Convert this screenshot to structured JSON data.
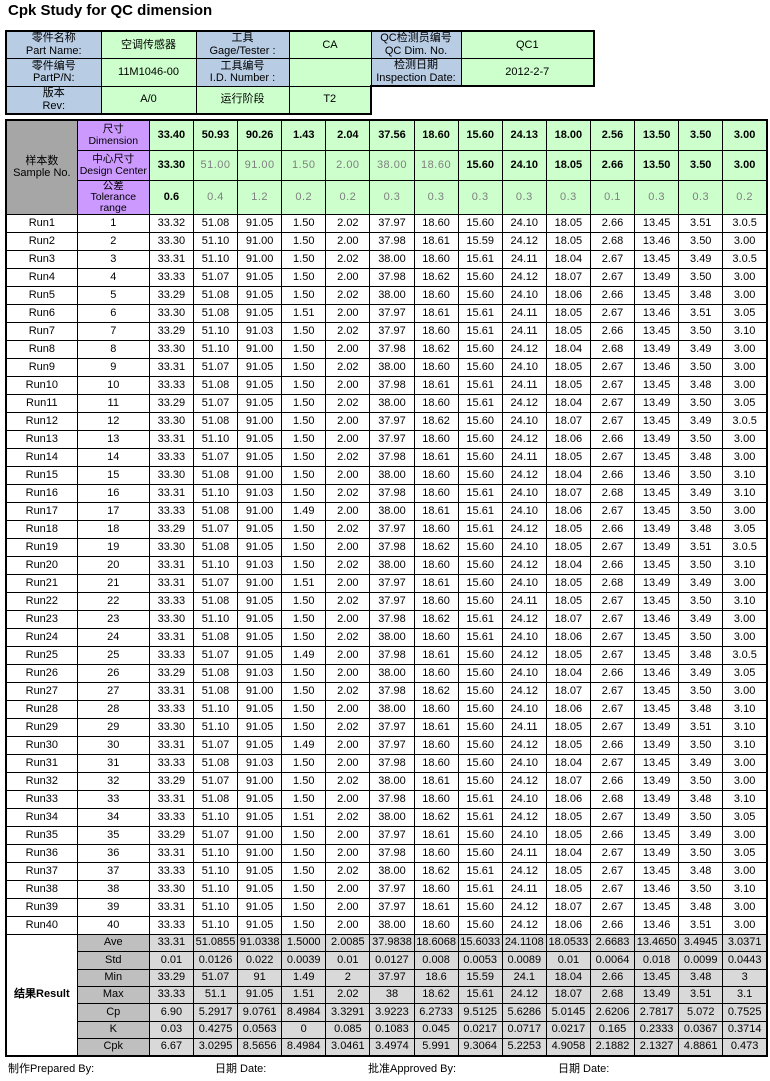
{
  "title": "Cpk Study for QC dimension",
  "info_table": {
    "rows": [
      [
        {
          "bg": "blue",
          "text": "零件名称\nPart Name:"
        },
        {
          "bg": "green",
          "text": "空调传感器"
        },
        {
          "bg": "blue",
          "text": "工具\nGage/Tester :"
        },
        {
          "bg": "green",
          "text": "CA"
        },
        {
          "bg": "blue",
          "text": "QC检测员编号\nQC Dim. No."
        },
        {
          "bg": "green",
          "text": "QC1"
        }
      ],
      [
        {
          "bg": "blue",
          "text": "零件编号\nPartP/N:"
        },
        {
          "bg": "green",
          "text": "11M1046-00"
        },
        {
          "bg": "blue",
          "text": "工具编号\nI.D. Number :"
        },
        {
          "bg": "green",
          "text": ""
        },
        {
          "bg": "blue",
          "text": "检测日期\nInspection Date:"
        },
        {
          "bg": "green",
          "text": "2012-2-7"
        }
      ],
      [
        {
          "bg": "blue",
          "text": "版本\nRev:"
        },
        {
          "bg": "green",
          "text": "A/0"
        },
        {
          "bg": "green",
          "text": "运行阶段"
        },
        {
          "bg": "green",
          "text": "T2"
        }
      ]
    ]
  },
  "measure_table": {
    "corner_label": "样本数\nSample No.",
    "header_rows": [
      {
        "label": "尺寸\nDimension",
        "values": [
          "33.40",
          "50.93",
          "90.26",
          "1.43",
          "2.04",
          "37.56",
          "18.60",
          "15.60",
          "24.13",
          "18.00",
          "2.56",
          "13.50",
          "3.50",
          "3.00"
        ],
        "muted": [
          0,
          0,
          0,
          0,
          0,
          0,
          0,
          0,
          0,
          0,
          0,
          0,
          0,
          0
        ]
      },
      {
        "label": "中心尺寸\nDesign Center",
        "values": [
          "33.30",
          "51.00",
          "91.00",
          "1.50",
          "2.00",
          "38.00",
          "18.60",
          "15.60",
          "24.10",
          "18.05",
          "2.66",
          "13.50",
          "3.50",
          "3.00"
        ],
        "muted": [
          0,
          1,
          1,
          1,
          1,
          1,
          1,
          0,
          0,
          0,
          0,
          0,
          0,
          0
        ]
      },
      {
        "label": "公差\nTolerance\nrange",
        "values": [
          "0.6",
          "0.4",
          "1.2",
          "0.2",
          "0.2",
          "0.3",
          "0.3",
          "0.3",
          "0.3",
          "0.3",
          "0.1",
          "0.3",
          "0.3",
          "0.2"
        ],
        "muted": [
          0,
          1,
          1,
          1,
          1,
          1,
          1,
          1,
          1,
          1,
          1,
          1,
          1,
          1
        ]
      }
    ],
    "runs": [
      {
        "run": "Run1",
        "no": "1",
        "values": [
          "33.32",
          "51.08",
          "91.05",
          "1.50",
          "2.02",
          "37.97",
          "18.60",
          "15.60",
          "24.10",
          "18.05",
          "2.66",
          "13.45",
          "3.51",
          "3.0.5"
        ]
      },
      {
        "run": "Run2",
        "no": "2",
        "values": [
          "33.30",
          "51.10",
          "91.00",
          "1.50",
          "2.00",
          "37.98",
          "18.61",
          "15.59",
          "24.12",
          "18.05",
          "2.68",
          "13.46",
          "3.50",
          "3.00"
        ]
      },
      {
        "run": "Run3",
        "no": "3",
        "values": [
          "33.31",
          "51.10",
          "91.00",
          "1.50",
          "2.02",
          "38.00",
          "18.60",
          "15.61",
          "24.11",
          "18.04",
          "2.67",
          "13.45",
          "3.49",
          "3.0.5"
        ]
      },
      {
        "run": "Run4",
        "no": "4",
        "values": [
          "33.33",
          "51.07",
          "91.05",
          "1.50",
          "2.00",
          "37.98",
          "18.62",
          "15.60",
          "24.12",
          "18.07",
          "2.67",
          "13.49",
          "3.50",
          "3.00"
        ]
      },
      {
        "run": "Run5",
        "no": "5",
        "values": [
          "33.29",
          "51.08",
          "91.05",
          "1.50",
          "2.02",
          "38.00",
          "18.60",
          "15.60",
          "24.10",
          "18.06",
          "2.66",
          "13.45",
          "3.48",
          "3.00"
        ]
      },
      {
        "run": "Run6",
        "no": "6",
        "values": [
          "33.30",
          "51.08",
          "91.05",
          "1.51",
          "2.00",
          "37.97",
          "18.61",
          "15.61",
          "24.11",
          "18.05",
          "2.67",
          "13.46",
          "3.51",
          "3.05"
        ]
      },
      {
        "run": "Run7",
        "no": "7",
        "values": [
          "33.29",
          "51.10",
          "91.03",
          "1.50",
          "2.02",
          "37.97",
          "18.60",
          "15.61",
          "24.11",
          "18.05",
          "2.66",
          "13.45",
          "3.50",
          "3.10"
        ]
      },
      {
        "run": "Run8",
        "no": "8",
        "values": [
          "33.30",
          "51.10",
          "91.00",
          "1.50",
          "2.00",
          "37.98",
          "18.62",
          "15.60",
          "24.12",
          "18.04",
          "2.68",
          "13.49",
          "3.49",
          "3.00"
        ]
      },
      {
        "run": "Run9",
        "no": "9",
        "values": [
          "33.31",
          "51.07",
          "91.05",
          "1.50",
          "2.02",
          "38.00",
          "18.60",
          "15.60",
          "24.10",
          "18.05",
          "2.67",
          "13.46",
          "3.50",
          "3.00"
        ]
      },
      {
        "run": "Run10",
        "no": "10",
        "values": [
          "33.33",
          "51.08",
          "91.05",
          "1.50",
          "2.00",
          "37.98",
          "18.61",
          "15.61",
          "24.11",
          "18.05",
          "2.67",
          "13.45",
          "3.48",
          "3.00"
        ]
      },
      {
        "run": "Run11",
        "no": "11",
        "values": [
          "33.29",
          "51.07",
          "91.05",
          "1.50",
          "2.02",
          "38.00",
          "18.60",
          "15.61",
          "24.12",
          "18.04",
          "2.67",
          "13.49",
          "3.50",
          "3.05"
        ]
      },
      {
        "run": "Run12",
        "no": "12",
        "values": [
          "33.30",
          "51.08",
          "91.00",
          "1.50",
          "2.00",
          "37.97",
          "18.62",
          "15.60",
          "24.10",
          "18.07",
          "2.67",
          "13.45",
          "3.49",
          "3.0.5"
        ]
      },
      {
        "run": "Run13",
        "no": "13",
        "values": [
          "33.31",
          "51.10",
          "91.05",
          "1.50",
          "2.00",
          "37.97",
          "18.60",
          "15.60",
          "24.12",
          "18.06",
          "2.66",
          "13.49",
          "3.50",
          "3.00"
        ]
      },
      {
        "run": "Run14",
        "no": "14",
        "values": [
          "33.33",
          "51.07",
          "91.05",
          "1.50",
          "2.02",
          "37.98",
          "18.61",
          "15.60",
          "24.11",
          "18.05",
          "2.67",
          "13.45",
          "3.48",
          "3.00"
        ]
      },
      {
        "run": "Run15",
        "no": "15",
        "values": [
          "33.30",
          "51.08",
          "91.00",
          "1.50",
          "2.00",
          "38.00",
          "18.60",
          "15.60",
          "24.12",
          "18.04",
          "2.66",
          "13.46",
          "3.50",
          "3.10"
        ]
      },
      {
        "run": "Run16",
        "no": "16",
        "values": [
          "33.31",
          "51.10",
          "91.03",
          "1.50",
          "2.02",
          "37.98",
          "18.60",
          "15.61",
          "24.10",
          "18.07",
          "2.68",
          "13.45",
          "3.49",
          "3.10"
        ]
      },
      {
        "run": "Run17",
        "no": "17",
        "values": [
          "33.33",
          "51.08",
          "91.00",
          "1.49",
          "2.00",
          "38.00",
          "18.61",
          "15.61",
          "24.10",
          "18.06",
          "2.67",
          "13.45",
          "3.50",
          "3.00"
        ]
      },
      {
        "run": "Run18",
        "no": "18",
        "values": [
          "33.29",
          "51.07",
          "91.05",
          "1.50",
          "2.02",
          "37.97",
          "18.60",
          "15.61",
          "24.12",
          "18.05",
          "2.66",
          "13.49",
          "3.48",
          "3.05"
        ]
      },
      {
        "run": "Run19",
        "no": "19",
        "values": [
          "33.30",
          "51.08",
          "91.05",
          "1.50",
          "2.00",
          "37.98",
          "18.62",
          "15.60",
          "24.10",
          "18.05",
          "2.67",
          "13.49",
          "3.51",
          "3.0.5"
        ]
      },
      {
        "run": "Run20",
        "no": "20",
        "values": [
          "33.31",
          "51.10",
          "91.03",
          "1.50",
          "2.02",
          "38.00",
          "18.60",
          "15.60",
          "24.12",
          "18.04",
          "2.66",
          "13.45",
          "3.50",
          "3.10"
        ]
      },
      {
        "run": "Run21",
        "no": "21",
        "values": [
          "33.31",
          "51.07",
          "91.00",
          "1.51",
          "2.00",
          "37.97",
          "18.61",
          "15.60",
          "24.10",
          "18.05",
          "2.68",
          "13.49",
          "3.49",
          "3.00"
        ]
      },
      {
        "run": "Run22",
        "no": "22",
        "values": [
          "33.33",
          "51.08",
          "91.05",
          "1.50",
          "2.02",
          "37.97",
          "18.60",
          "15.60",
          "24.11",
          "18.05",
          "2.67",
          "13.45",
          "3.50",
          "3.10"
        ]
      },
      {
        "run": "Run23",
        "no": "23",
        "values": [
          "33.30",
          "51.10",
          "91.05",
          "1.50",
          "2.00",
          "37.98",
          "18.62",
          "15.61",
          "24.12",
          "18.07",
          "2.67",
          "13.46",
          "3.49",
          "3.00"
        ]
      },
      {
        "run": "Run24",
        "no": "24",
        "values": [
          "33.31",
          "51.08",
          "91.05",
          "1.50",
          "2.02",
          "38.00",
          "18.60",
          "15.61",
          "24.10",
          "18.06",
          "2.67",
          "13.45",
          "3.50",
          "3.00"
        ]
      },
      {
        "run": "Run25",
        "no": "25",
        "values": [
          "33.33",
          "51.07",
          "91.05",
          "1.49",
          "2.00",
          "37.98",
          "18.61",
          "15.60",
          "24.12",
          "18.05",
          "2.67",
          "13.45",
          "3.48",
          "3.0.5"
        ]
      },
      {
        "run": "Run26",
        "no": "26",
        "values": [
          "33.29",
          "51.08",
          "91.03",
          "1.50",
          "2.00",
          "38.00",
          "18.60",
          "15.60",
          "24.10",
          "18.04",
          "2.66",
          "13.46",
          "3.49",
          "3.05"
        ]
      },
      {
        "run": "Run27",
        "no": "27",
        "values": [
          "33.31",
          "51.08",
          "91.00",
          "1.50",
          "2.02",
          "37.98",
          "18.62",
          "15.60",
          "24.12",
          "18.07",
          "2.67",
          "13.45",
          "3.50",
          "3.00"
        ]
      },
      {
        "run": "Run28",
        "no": "28",
        "values": [
          "33.33",
          "51.10",
          "91.05",
          "1.50",
          "2.00",
          "38.00",
          "18.60",
          "15.60",
          "24.10",
          "18.06",
          "2.67",
          "13.45",
          "3.48",
          "3.10"
        ]
      },
      {
        "run": "Run29",
        "no": "29",
        "values": [
          "33.30",
          "51.10",
          "91.05",
          "1.50",
          "2.02",
          "37.97",
          "18.61",
          "15.60",
          "24.11",
          "18.05",
          "2.67",
          "13.49",
          "3.51",
          "3.10"
        ]
      },
      {
        "run": "Run30",
        "no": "30",
        "values": [
          "33.31",
          "51.07",
          "91.05",
          "1.49",
          "2.00",
          "37.97",
          "18.60",
          "15.60",
          "24.12",
          "18.05",
          "2.66",
          "13.49",
          "3.50",
          "3.10"
        ]
      },
      {
        "run": "Run31",
        "no": "31",
        "values": [
          "33.33",
          "51.08",
          "91.03",
          "1.50",
          "2.00",
          "37.98",
          "18.60",
          "15.60",
          "24.10",
          "18.04",
          "2.67",
          "13.45",
          "3.49",
          "3.00"
        ]
      },
      {
        "run": "Run32",
        "no": "32",
        "values": [
          "33.29",
          "51.07",
          "91.00",
          "1.50",
          "2.02",
          "38.00",
          "18.61",
          "15.60",
          "24.12",
          "18.07",
          "2.66",
          "13.49",
          "3.50",
          "3.00"
        ]
      },
      {
        "run": "Run33",
        "no": "33",
        "values": [
          "33.31",
          "51.08",
          "91.05",
          "1.50",
          "2.00",
          "37.98",
          "18.60",
          "15.61",
          "24.10",
          "18.06",
          "2.68",
          "13.49",
          "3.48",
          "3.10"
        ]
      },
      {
        "run": "Run34",
        "no": "34",
        "values": [
          "33.33",
          "51.10",
          "91.05",
          "1.51",
          "2.02",
          "38.00",
          "18.62",
          "15.61",
          "24.12",
          "18.05",
          "2.67",
          "13.49",
          "3.50",
          "3.05"
        ]
      },
      {
        "run": "Run35",
        "no": "35",
        "values": [
          "33.29",
          "51.07",
          "91.00",
          "1.50",
          "2.00",
          "37.97",
          "18.61",
          "15.60",
          "24.10",
          "18.05",
          "2.66",
          "13.45",
          "3.49",
          "3.00"
        ]
      },
      {
        "run": "Run36",
        "no": "36",
        "values": [
          "33.31",
          "51.10",
          "91.00",
          "1.50",
          "2.00",
          "37.98",
          "18.60",
          "15.60",
          "24.11",
          "18.04",
          "2.67",
          "13.49",
          "3.50",
          "3.05"
        ]
      },
      {
        "run": "Run37",
        "no": "37",
        "values": [
          "33.33",
          "51.10",
          "91.05",
          "1.50",
          "2.02",
          "38.00",
          "18.62",
          "15.61",
          "24.12",
          "18.05",
          "2.67",
          "13.45",
          "3.48",
          "3.00"
        ]
      },
      {
        "run": "Run38",
        "no": "38",
        "values": [
          "33.30",
          "51.10",
          "91.05",
          "1.50",
          "2.00",
          "37.97",
          "18.60",
          "15.61",
          "24.11",
          "18.05",
          "2.67",
          "13.46",
          "3.50",
          "3.10"
        ]
      },
      {
        "run": "Run39",
        "no": "39",
        "values": [
          "33.31",
          "51.10",
          "91.05",
          "1.50",
          "2.00",
          "37.97",
          "18.61",
          "15.60",
          "24.12",
          "18.07",
          "2.67",
          "13.45",
          "3.48",
          "3.00"
        ]
      },
      {
        "run": "Run40",
        "no": "40",
        "values": [
          "33.33",
          "51.10",
          "91.05",
          "1.50",
          "2.00",
          "38.00",
          "18.60",
          "15.60",
          "24.12",
          "18.06",
          "2.66",
          "13.46",
          "3.51",
          "3.00"
        ]
      }
    ],
    "results_label": "结果Result",
    "results": [
      {
        "label": "Ave",
        "values": [
          "33.31",
          "51.0855",
          "91.0338",
          "1.5000",
          "2.0085",
          "37.9838",
          "18.6068",
          "15.6033",
          "24.1108",
          "18.0533",
          "2.6683",
          "13.4650",
          "3.4945",
          "3.0371"
        ]
      },
      {
        "label": "Std",
        "values": [
          "0.01",
          "0.0126",
          "0.022",
          "0.0039",
          "0.01",
          "0.0127",
          "0.008",
          "0.0053",
          "0.0089",
          "0.01",
          "0.0064",
          "0.018",
          "0.0099",
          "0.0443"
        ]
      },
      {
        "label": "Min",
        "values": [
          "33.29",
          "51.07",
          "91",
          "1.49",
          "2",
          "37.97",
          "18.6",
          "15.59",
          "24.1",
          "18.04",
          "2.66",
          "13.45",
          "3.48",
          "3"
        ]
      },
      {
        "label": "Max",
        "values": [
          "33.33",
          "51.1",
          "91.05",
          "1.51",
          "2.02",
          "38",
          "18.62",
          "15.61",
          "24.12",
          "18.07",
          "2.68",
          "13.49",
          "3.51",
          "3.1"
        ]
      },
      {
        "label": "Cp",
        "values": [
          "6.90",
          "5.2917",
          "9.0761",
          "8.4984",
          "3.3291",
          "3.9223",
          "6.2733",
          "9.5125",
          "5.6286",
          "5.0145",
          "2.6206",
          "2.7817",
          "5.072",
          "0.7525"
        ]
      },
      {
        "label": "K",
        "values": [
          "0.03",
          "0.4275",
          "0.0563",
          "0",
          "0.085",
          "0.1083",
          "0.045",
          "0.0217",
          "0.0717",
          "0.0217",
          "0.165",
          "0.2333",
          "0.0367",
          "0.3714"
        ]
      },
      {
        "label": "Cpk",
        "values": [
          "6.67",
          "3.0295",
          "8.5656",
          "8.4984",
          "3.0461",
          "3.4974",
          "5.991",
          "9.3064",
          "5.2253",
          "4.9058",
          "2.1882",
          "2.1327",
          "4.8861",
          "0.473"
        ]
      }
    ]
  },
  "footer": {
    "items": [
      "制作Prepared By:",
      "日期 Date:",
      "批准Approved By:",
      "日期 Date:"
    ]
  }
}
